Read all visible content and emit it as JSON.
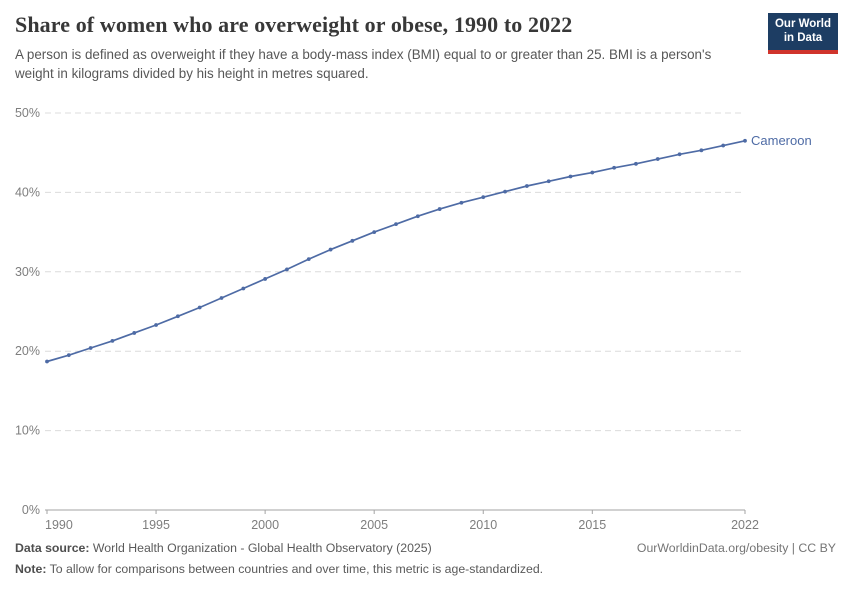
{
  "header": {
    "title": "Share of women who are overweight or obese, 1990 to 2022",
    "subtitle": "A person is defined as overweight if they have a body-mass index (BMI) equal to or greater than 25. BMI is a person's weight in kilograms divided by his height in metres squared.",
    "logo": {
      "line1": "Our World",
      "line2": "in Data"
    }
  },
  "chart_data": {
    "type": "line",
    "title": "Share of women who are overweight or obese, 1990 to 2022",
    "x": [
      1990,
      1991,
      1992,
      1993,
      1994,
      1995,
      1996,
      1997,
      1998,
      1999,
      2000,
      2001,
      2002,
      2003,
      2004,
      2005,
      2006,
      2007,
      2008,
      2009,
      2010,
      2011,
      2012,
      2013,
      2014,
      2015,
      2016,
      2017,
      2018,
      2019,
      2020,
      2021,
      2022
    ],
    "series": [
      {
        "name": "Cameroon",
        "values": [
          18.7,
          19.5,
          20.4,
          21.3,
          22.3,
          23.3,
          24.4,
          25.5,
          26.7,
          27.9,
          29.1,
          30.3,
          31.6,
          32.8,
          33.9,
          35.0,
          36.0,
          37.0,
          37.9,
          38.7,
          39.4,
          40.1,
          40.8,
          41.4,
          42.0,
          42.5,
          43.1,
          43.6,
          44.2,
          44.8,
          45.3,
          45.9,
          46.5
        ],
        "color": "#4e6ba5"
      }
    ],
    "xlabel": "",
    "ylabel": "",
    "xlim": [
      1990,
      2022
    ],
    "ylim": [
      0,
      50
    ],
    "xticks": [
      1990,
      1995,
      2000,
      2005,
      2010,
      2015,
      2022
    ],
    "yticks": [
      0,
      10,
      20,
      30,
      40,
      50
    ],
    "ytick_labels": [
      "0%",
      "10%",
      "20%",
      "30%",
      "40%",
      "50%"
    ],
    "grid": "horizontal-dashed",
    "legend_position": "end-of-line-label",
    "entity_label": "Cameroon"
  },
  "footer": {
    "datasource_label": "Data source:",
    "datasource_text": " World Health Organization - Global Health Observatory (2025)",
    "note_label": "Note:",
    "note_text": " To allow for comparisons between countries and over time, this metric is age-standardized.",
    "right_text": "OurWorldinData.org/obesity | CC BY"
  },
  "colors": {
    "line": "#4e6ba5",
    "entity_label": "#4e6ba5",
    "gridline": "#dcdcdc",
    "axis": "#a3a3a3",
    "tick_label": "#7e7e7e",
    "logo_bg": "#1d3d63",
    "logo_red": "#d0342c"
  }
}
